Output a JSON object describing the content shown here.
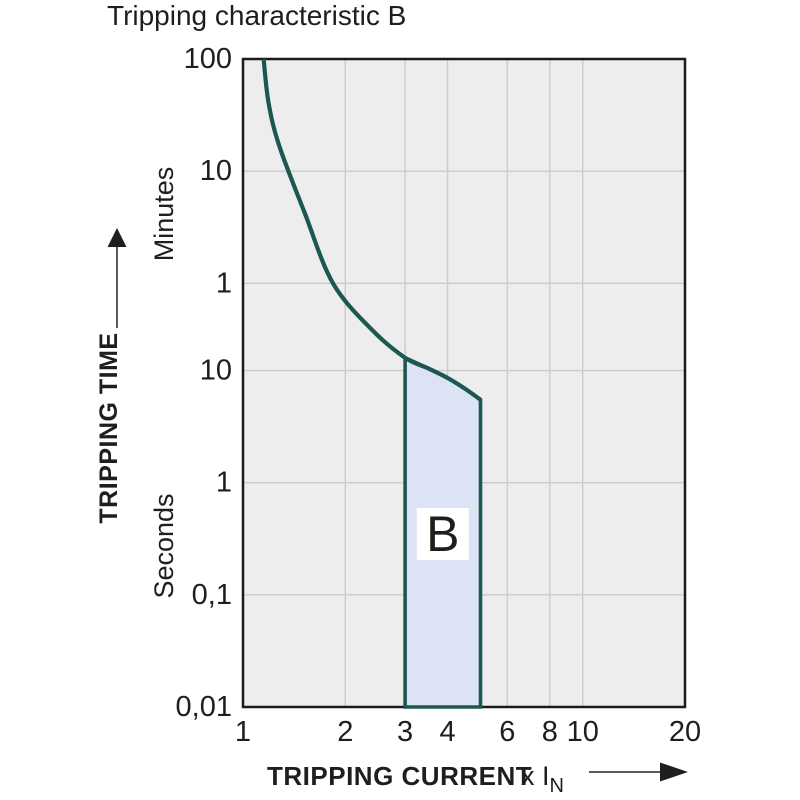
{
  "page": {
    "background_color": "#ffffff"
  },
  "chart_data": {
    "type": "line",
    "title": "Tripping characteristic B",
    "grid": true,
    "legend": "none",
    "x_axis": {
      "title": "TRIPPING CURRENT",
      "unit": {
        "prefix": "x I",
        "subscript": "N"
      },
      "scale": "log",
      "range": [
        1,
        20
      ],
      "ticks": [
        {
          "value": 1,
          "label": "1"
        },
        {
          "value": 2,
          "label": "2"
        },
        {
          "value": 3,
          "label": "3"
        },
        {
          "value": 4,
          "label": "4"
        },
        {
          "value": 6,
          "label": "6"
        },
        {
          "value": 8,
          "label": "8"
        },
        {
          "value": 10,
          "label": "10"
        },
        {
          "value": 20,
          "label": "20"
        }
      ],
      "gridline_values": [
        2,
        3,
        4,
        6,
        8,
        10
      ]
    },
    "y_axis": {
      "title": "TRIPPING TIME",
      "scale": "log",
      "range_seconds": [
        0.01,
        6000
      ],
      "units": [
        {
          "label": "Minutes",
          "region": "upper"
        },
        {
          "label": "Seconds",
          "region": "lower"
        }
      ],
      "ticks": [
        {
          "seconds": 6000,
          "label": "100",
          "unit": "minutes"
        },
        {
          "seconds": 600,
          "label": "10",
          "unit": "minutes"
        },
        {
          "seconds": 60,
          "label": "1",
          "unit": "minutes"
        },
        {
          "seconds": 10,
          "label": "10",
          "unit": "seconds"
        },
        {
          "seconds": 1,
          "label": "1",
          "unit": "seconds"
        },
        {
          "seconds": 0.1,
          "label": "0,1",
          "unit": "seconds"
        },
        {
          "seconds": 0.01,
          "label": "0,01",
          "unit": "seconds"
        }
      ],
      "gridline_values_seconds": [
        600,
        60,
        10,
        1,
        0.1
      ]
    },
    "series": [
      {
        "name": "tripping-curve",
        "points_x_in_multiples_t_seconds": [
          [
            1.15,
            6000
          ],
          [
            1.19,
            2400
          ],
          [
            1.28,
            1000
          ],
          [
            1.52,
            253
          ],
          [
            1.84,
            60
          ],
          [
            2.4,
            23
          ],
          [
            3.0,
            13
          ],
          [
            3.5,
            10.5
          ],
          [
            4.0,
            8.6
          ],
          [
            4.5,
            6.9
          ],
          [
            5.0,
            5.5
          ]
        ]
      }
    ],
    "band": {
      "label": "B",
      "x_range": [
        3,
        5
      ],
      "top_edge_points": [
        [
          3.0,
          13
        ],
        [
          3.5,
          10.5
        ],
        [
          4.0,
          8.6
        ],
        [
          4.5,
          6.9
        ],
        [
          5.0,
          5.5
        ]
      ],
      "bottom_seconds": 0.01
    },
    "colors": {
      "curve": "#1d5751",
      "band_fill": "#dce3f4",
      "band_label_bg": "#ffffff",
      "plot_background": "#ededed",
      "gridline": "#cbcbcb",
      "plot_border": "#1a1a1a",
      "text": "#1e1e1e",
      "arrow_line": "#5a5a5a",
      "arrow_head": "#1e1e1e"
    }
  }
}
